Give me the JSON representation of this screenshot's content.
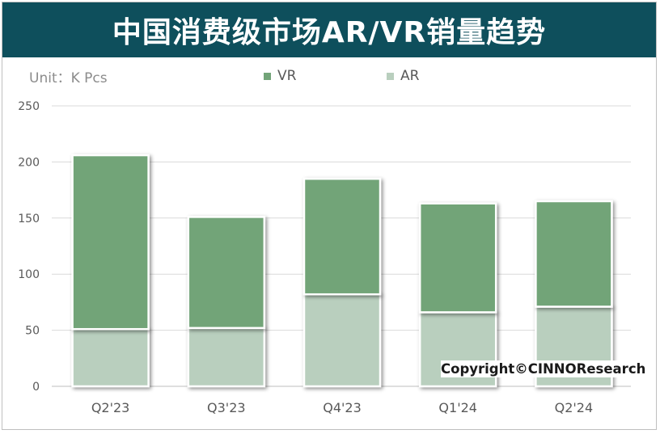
{
  "title": "中国消费级市场AR/VR销量趋势",
  "unit_label": "Unit：K Pcs",
  "copyright": "Copyright©CINNOResearch",
  "colors": {
    "header": "#0e4f5c",
    "vr": "#72a478",
    "ar": "#b9cfbe",
    "grid": "#d9d9d9"
  },
  "chart_data": {
    "type": "bar",
    "stacked": true,
    "categories": [
      "Q2'23",
      "Q3'23",
      "Q4'23",
      "Q1'24",
      "Q2'24"
    ],
    "series": [
      {
        "name": "AR",
        "values": [
          51,
          52,
          82,
          66,
          71
        ]
      },
      {
        "name": "VR",
        "values": [
          155,
          99,
          103,
          97,
          94
        ]
      }
    ],
    "ylim": [
      0,
      250
    ],
    "yticks": [
      0,
      50,
      100,
      150,
      200,
      250
    ],
    "grid": true,
    "legend": "top"
  }
}
